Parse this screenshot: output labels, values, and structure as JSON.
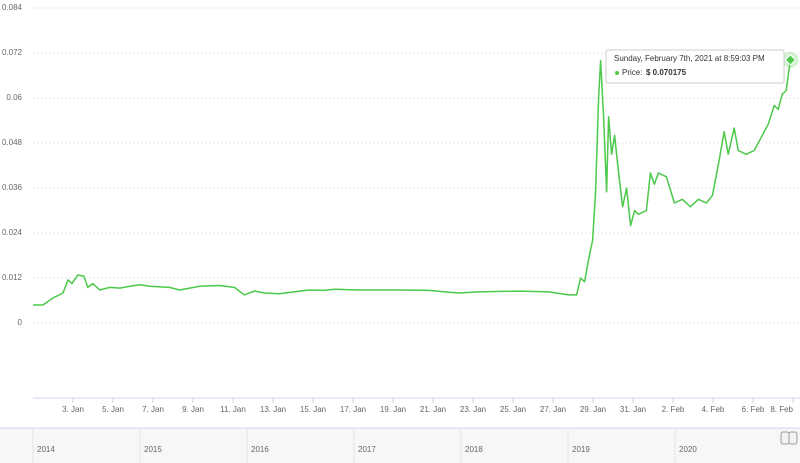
{
  "chart_data": {
    "type": "line",
    "color": "#4cc84a",
    "x": [
      1,
      1.5,
      2,
      2.5,
      2.75,
      2.95,
      3.24,
      3.54,
      3.74,
      3.99,
      4.34,
      4.84,
      5.34,
      5.84,
      6.34,
      6.84,
      7.83,
      8.33,
      8.83,
      9.33,
      10.33,
      11.07,
      11.57,
      12.07,
      12.57,
      13.32,
      14.06,
      14.81,
      15.56,
      16.06,
      17.31,
      19.3,
      20.8,
      21.8,
      22.3,
      23.29,
      25.29,
      26.79,
      27.78,
      28.18,
      28.38,
      28.58,
      28.78,
      28.98,
      29.13,
      29.28,
      29.38,
      29.53,
      29.68,
      29.78,
      29.93,
      30.08,
      30.28,
      30.48,
      30.68,
      30.88,
      31.08,
      31.27,
      31.67,
      31.87,
      32.07,
      32.27,
      32.67,
      33.07,
      33.47,
      33.87,
      34.27,
      34.67,
      34.97,
      35.26,
      35.56,
      35.76,
      36.06,
      36.26,
      36.66,
      37.06,
      37.36,
      37.76,
      38.06,
      38.26,
      38.46,
      38.66,
      38.87
    ],
    "values": [
      0.0048,
      0.0048,
      0.0067,
      0.008,
      0.0115,
      0.0105,
      0.0128,
      0.0125,
      0.0095,
      0.0105,
      0.0088,
      0.0095,
      0.0093,
      0.0098,
      0.0102,
      0.0098,
      0.0095,
      0.0088,
      0.0093,
      0.0098,
      0.01,
      0.0095,
      0.0075,
      0.0085,
      0.008,
      0.0078,
      0.0083,
      0.0088,
      0.0087,
      0.009,
      0.0088,
      0.0088,
      0.0087,
      0.0082,
      0.008,
      0.0083,
      0.0085,
      0.0083,
      0.0075,
      0.0075,
      0.012,
      0.011,
      0.017,
      0.022,
      0.035,
      0.06,
      0.07,
      0.055,
      0.035,
      0.055,
      0.045,
      0.05,
      0.04,
      0.031,
      0.036,
      0.026,
      0.03,
      0.029,
      0.03,
      0.04,
      0.037,
      0.04,
      0.039,
      0.032,
      0.033,
      0.031,
      0.033,
      0.032,
      0.034,
      0.042,
      0.051,
      0.045,
      0.052,
      0.046,
      0.045,
      0.046,
      0.049,
      0.053,
      0.058,
      0.057,
      0.061,
      0.062,
      0.070175
    ],
    "xlim": [
      1,
      39
    ],
    "ylim": [
      -0.02,
      0.084
    ],
    "yticks": [
      0,
      0.012,
      0.024,
      0.036,
      0.048,
      0.06,
      0.072,
      0.084
    ],
    "xticks": [
      {
        "value": 3,
        "label": "3. Jan"
      },
      {
        "value": 5,
        "label": "5. Jan"
      },
      {
        "value": 7,
        "label": "7. Jan"
      },
      {
        "value": 9,
        "label": "9. Jan"
      },
      {
        "value": 11,
        "label": "11. Jan"
      },
      {
        "value": 13,
        "label": "13. Jan"
      },
      {
        "value": 15,
        "label": "15. Jan"
      },
      {
        "value": 17,
        "label": "17. Jan"
      },
      {
        "value": 19,
        "label": "19. Jan"
      },
      {
        "value": 21,
        "label": "21. Jan"
      },
      {
        "value": 23,
        "label": "23. Jan"
      },
      {
        "value": 25,
        "label": "25. Jan"
      },
      {
        "value": 27,
        "label": "27. Jan"
      },
      {
        "value": 29,
        "label": "29. Jan"
      },
      {
        "value": 31,
        "label": "31. Jan"
      },
      {
        "value": 33,
        "label": "2. Feb"
      },
      {
        "value": 35,
        "label": "4. Feb"
      },
      {
        "value": 37,
        "label": "6. Feb"
      },
      {
        "value": 39,
        "label": "8. Feb"
      }
    ],
    "grid": true,
    "tooltip": {
      "date": "Sunday, February 7th, 2021 at 8:59:03 PM",
      "label": "Price:",
      "value": "$ 0.070175"
    },
    "navigator_labels": [
      "2014",
      "2015",
      "2016",
      "2017",
      "2018",
      "2019",
      "2020"
    ]
  }
}
